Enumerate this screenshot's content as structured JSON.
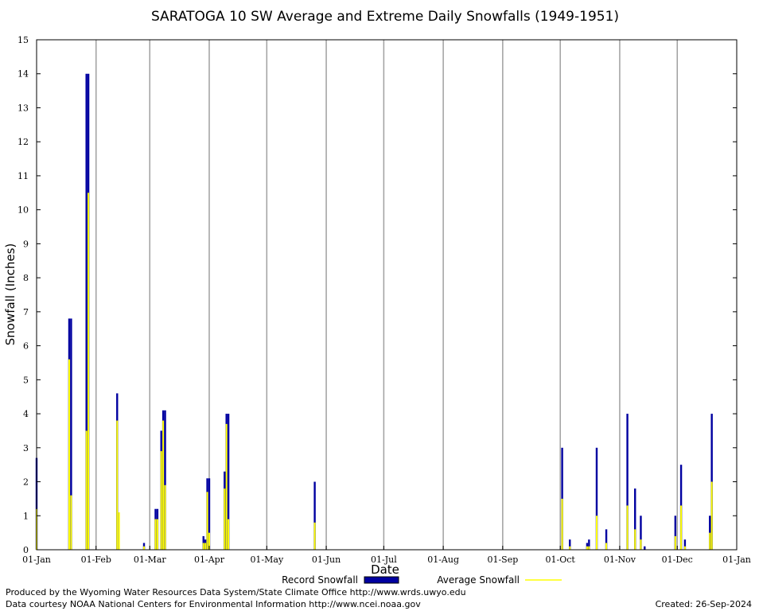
{
  "chart_data": {
    "type": "bar",
    "title": "SARATOGA 10 SW Average and Extreme Daily Snowfalls (1949-1951)",
    "xlabel": "Date",
    "ylabel": "Snowfall (Inches)",
    "ylim": [
      0,
      15
    ],
    "yticks": [
      0,
      1,
      2,
      3,
      4,
      5,
      6,
      7,
      8,
      9,
      10,
      11,
      12,
      13,
      14,
      15
    ],
    "x_domain_days": [
      1,
      366
    ],
    "xticks": [
      {
        "day": 1,
        "label": "01-Jan"
      },
      {
        "day": 32,
        "label": "01-Feb"
      },
      {
        "day": 60,
        "label": "01-Mar"
      },
      {
        "day": 91,
        "label": "01-Apr"
      },
      {
        "day": 121,
        "label": "01-May"
      },
      {
        "day": 152,
        "label": "01-Jun"
      },
      {
        "day": 182,
        "label": "01-Jul"
      },
      {
        "day": 213,
        "label": "01-Aug"
      },
      {
        "day": 244,
        "label": "01-Sep"
      },
      {
        "day": 274,
        "label": "01-Oct"
      },
      {
        "day": 305,
        "label": "01-Nov"
      },
      {
        "day": 335,
        "label": "01-Dec"
      },
      {
        "day": 366,
        "label": "01-Jan"
      }
    ],
    "grid": true,
    "legend_position": "bottom",
    "series": [
      {
        "name": "Record Snowfall",
        "color": "#0000a0",
        "points": [
          [
            1,
            2.7
          ],
          [
            18,
            6.8
          ],
          [
            19,
            6.8
          ],
          [
            27,
            14.0
          ],
          [
            28,
            14.0
          ],
          [
            43,
            4.6
          ],
          [
            57,
            0.2
          ],
          [
            63,
            1.2
          ],
          [
            64,
            1.2
          ],
          [
            66,
            3.5
          ],
          [
            67,
            4.1
          ],
          [
            68,
            4.1
          ],
          [
            88,
            0.4
          ],
          [
            89,
            0.3
          ],
          [
            90,
            2.1
          ],
          [
            91,
            2.1
          ],
          [
            99,
            2.3
          ],
          [
            100,
            4.0
          ],
          [
            101,
            4.0
          ],
          [
            146,
            2.0
          ],
          [
            275,
            3.0
          ],
          [
            279,
            0.3
          ],
          [
            288,
            0.2
          ],
          [
            289,
            0.3
          ],
          [
            293,
            3.0
          ],
          [
            298,
            0.6
          ],
          [
            309,
            4.0
          ],
          [
            313,
            1.8
          ],
          [
            316,
            1.0
          ],
          [
            318,
            0.1
          ],
          [
            334,
            1.0
          ],
          [
            337,
            2.5
          ],
          [
            339,
            0.3
          ],
          [
            352,
            1.0
          ],
          [
            353,
            4.0
          ]
        ]
      },
      {
        "name": "Average Snowfall",
        "color": "#ffff00",
        "points": [
          [
            1,
            1.2
          ],
          [
            18,
            5.6
          ],
          [
            19,
            1.6
          ],
          [
            27,
            3.5
          ],
          [
            28,
            10.5
          ],
          [
            43,
            3.8
          ],
          [
            44,
            1.1
          ],
          [
            57,
            0.1
          ],
          [
            63,
            0.9
          ],
          [
            64,
            0.9
          ],
          [
            66,
            2.9
          ],
          [
            67,
            3.8
          ],
          [
            68,
            1.9
          ],
          [
            88,
            0.2
          ],
          [
            89,
            0.2
          ],
          [
            90,
            1.7
          ],
          [
            91,
            0.5
          ],
          [
            99,
            1.8
          ],
          [
            100,
            3.7
          ],
          [
            101,
            0.9
          ],
          [
            146,
            0.8
          ],
          [
            275,
            1.5
          ],
          [
            279,
            0.1
          ],
          [
            288,
            0.1
          ],
          [
            289,
            0.1
          ],
          [
            293,
            1.0
          ],
          [
            298,
            0.2
          ],
          [
            309,
            1.3
          ],
          [
            313,
            0.6
          ],
          [
            316,
            0.3
          ],
          [
            334,
            0.4
          ],
          [
            337,
            1.3
          ],
          [
            339,
            0.1
          ],
          [
            352,
            0.5
          ],
          [
            353,
            2.0
          ]
        ]
      }
    ]
  },
  "footer": {
    "left_line1": "Produced by the Wyoming Water Resources Data System/State Climate Office http://www.wrds.uwyo.edu",
    "left_line2": "Data courtesy NOAA National Centers for Environmental Information http://www.ncei.noaa.gov",
    "created": "Created:  26-Sep-2024"
  }
}
